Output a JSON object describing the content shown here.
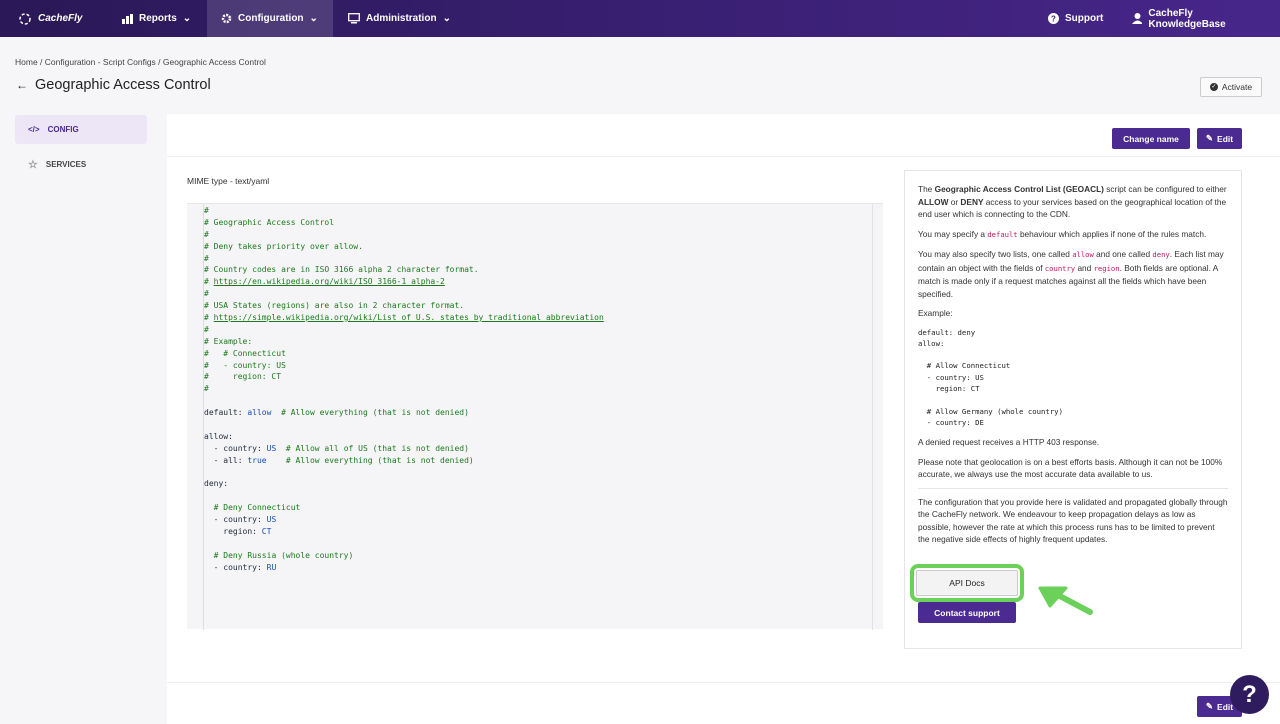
{
  "nav": {
    "logo": "CacheFly",
    "items": [
      "Reports",
      "Configuration",
      "Administration"
    ],
    "support": "Support",
    "account": "CacheFly KnowledgeBase"
  },
  "breadcrumb": [
    "Home",
    "Configuration - Script Configs",
    "Geographic Access Control"
  ],
  "page_title": "Geographic Access Control",
  "activate": "Activate",
  "sidebar": [
    "CONFIG",
    "SERVICES"
  ],
  "buttons": {
    "change_name": "Change name",
    "edit": "Edit"
  },
  "mime": "MIME type - text/yaml",
  "code": [
    "#",
    "# Geographic Access Control",
    "#",
    "# Deny takes priority over allow.",
    "#",
    "# Country codes are in ISO 3166 alpha 2 character format.",
    "# https://en.wikipedia.org/wiki/ISO_3166-1_alpha-2",
    "#",
    "# USA States (regions) are also in 2 character format.",
    "# https://simple.wikipedia.org/wiki/List_of_U.S._states_by_traditional_abbreviation",
    "#",
    "# Example:",
    "#   # Connecticut",
    "#   - country: US",
    "#     region: CT",
    "#",
    null,
    "default: allow  # Allow everything (that is not denied)",
    null,
    "allow:",
    "  - country: US  # Allow all of US (that is not denied)",
    "  - all: true    # Allow everything (that is not denied)",
    null,
    "deny:",
    null,
    "  # Deny Connecticut",
    "  - country: US",
    "    region: CT",
    null,
    "  # Deny Russia (whole country)",
    "  - country: RU"
  ],
  "help": {
    "intro": [
      "The ",
      "Geographic Access Control List (GEOACL)",
      " script can be configured to either ",
      "ALLOW",
      " or ",
      "DENY",
      " access to your services based on the geographical location of the end user which is connecting to the CDN."
    ],
    "default_note": [
      "You may specify a ",
      "default",
      " behaviour which applies if none of the rules match."
    ],
    "lists_note": [
      "You may also specify two lists, one called ",
      "allow",
      " and one called ",
      "deny",
      ". Each list may contain an object with the fields of ",
      "country",
      " and ",
      "region",
      ". Both fields are optional. A match is made only if a request matches against all the fields which have been specified."
    ],
    "example_label": "Example:",
    "example": [
      "default: deny",
      "allow:",
      null,
      "  # Allow Connecticut",
      "  - country: US",
      "    region: CT",
      null,
      "  # Allow Germany (whole country)",
      "  - country: DE"
    ],
    "denied": "A denied request receives a HTTP 403 response.",
    "accuracy": "Please note that geolocation is on a best efforts basis. Although it can not be 100% accurate, we always use the most accurate data available to us.",
    "propagation": "The configuration that you provide here is validated and propagated globally through the CacheFly network. We endeavour to keep propagation delays as low as possible, however the rate at which this process runs has to be limited to prevent the negative side effects of highly frequent updates."
  },
  "api_docs": "API Docs",
  "contact": "Contact support",
  "bottom_edit": "Edit",
  "help_fab": "?"
}
